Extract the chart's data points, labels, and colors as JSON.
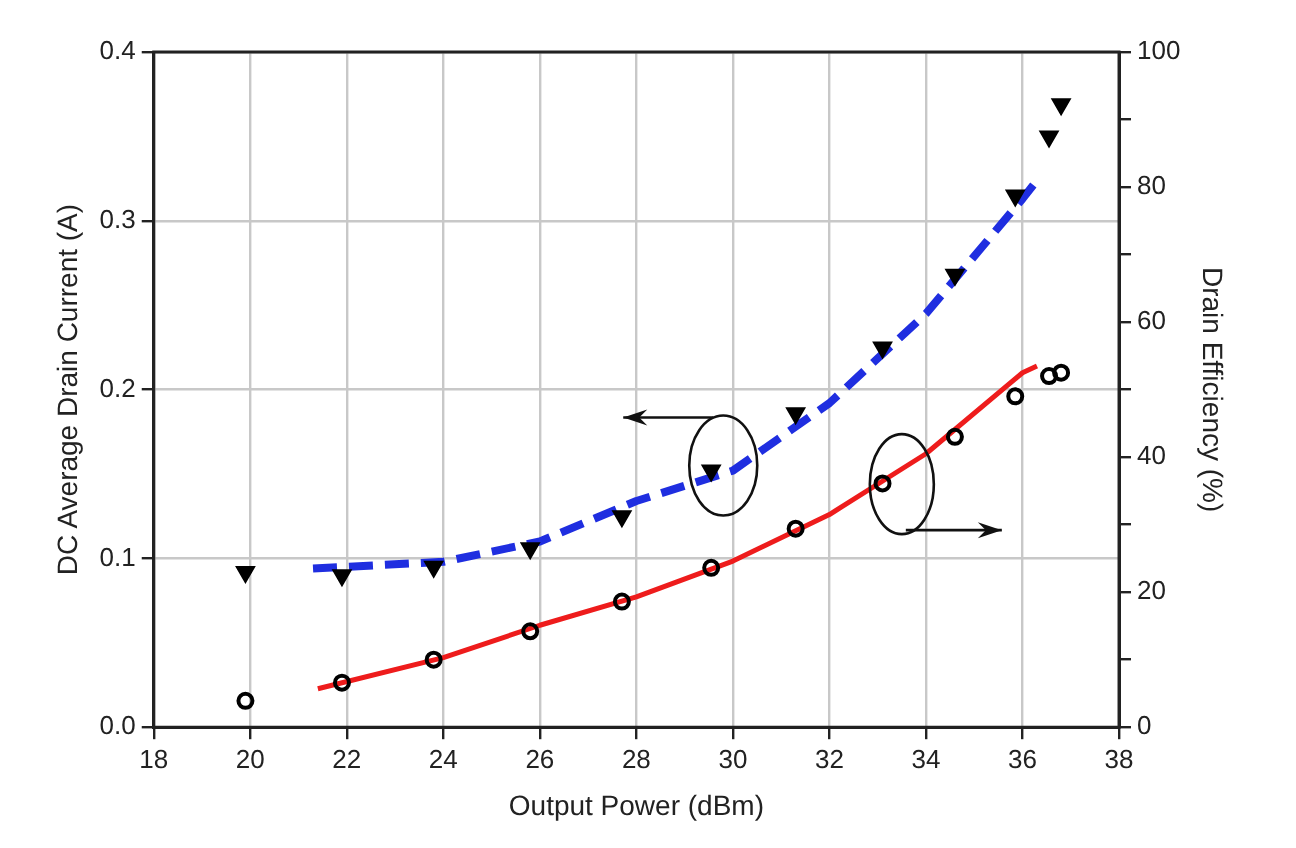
{
  "chart_data": {
    "type": "line",
    "xlabel": "Output Power (dBm)",
    "ylabel": "DC Average Drain Current (A)",
    "y2label": "Drain Efficiency (%)",
    "xlim": [
      18,
      38
    ],
    "xticks": [
      18,
      20,
      22,
      24,
      26,
      28,
      30,
      32,
      34,
      36,
      38
    ],
    "ylim": [
      0,
      0.4
    ],
    "yticks": [
      {
        "value": 0,
        "label": "0.0"
      },
      {
        "value": 0.1,
        "label": "0.1"
      },
      {
        "value": 0.2,
        "label": "0.2"
      },
      {
        "value": 0.3,
        "label": "0.3"
      },
      {
        "value": 0.4,
        "label": "0.4"
      }
    ],
    "y2lim": [
      0,
      100
    ],
    "y2ticks": [
      0,
      {
        "value": 10,
        "label": null
      },
      20,
      {
        "value": 30,
        "label": null
      },
      40,
      {
        "value": 50,
        "label": null
      },
      60,
      {
        "value": 70,
        "label": null
      },
      80,
      {
        "value": 90,
        "label": null
      },
      100
    ],
    "grid": true,
    "legend": false,
    "series": [
      {
        "type": "line",
        "color": "#1f2ee0",
        "line_style": "dashed",
        "marker": "none",
        "x": [
          21.3,
          24,
          26,
          28,
          30,
          32,
          34,
          36,
          36.3
        ],
        "values": [
          0.094,
          0.098,
          0.11,
          0.134,
          0.152,
          0.192,
          0.245,
          0.313,
          0.324
        ]
      },
      {
        "type": "line",
        "color": "#ee1c1c",
        "line_style": "solid",
        "marker": "none",
        "axis": "y2",
        "x": [
          21.4,
          24,
          26,
          28,
          30,
          32,
          34,
          36,
          36.3
        ],
        "values": [
          5.7,
          10.3,
          15.1,
          19.3,
          24.6,
          31.5,
          40.5,
          52.5,
          53.5
        ]
      },
      {
        "type": "scatter",
        "color": "#000000",
        "marker": "triangle",
        "x": [
          19.9,
          21.9,
          23.8,
          25.8,
          27.7,
          29.55,
          31.3,
          33.1,
          34.6,
          35.85,
          36.55,
          36.8
        ],
        "values": [
          0.092,
          0.09,
          0.095,
          0.106,
          0.125,
          0.152,
          0.186,
          0.225,
          0.268,
          0.315,
          0.35,
          0.369
        ]
      },
      {
        "type": "scatter",
        "color": "#000000",
        "marker": "circle",
        "axis": "y2",
        "x": [
          19.9,
          21.9,
          23.8,
          25.8,
          27.7,
          29.55,
          31.3,
          33.1,
          34.6,
          35.85,
          36.55,
          36.8
        ],
        "values": [
          3.9,
          6.6,
          10.0,
          14.2,
          18.6,
          23.6,
          29.4,
          36.1,
          43.0,
          49.0,
          52.0,
          52.5
        ]
      }
    ]
  }
}
